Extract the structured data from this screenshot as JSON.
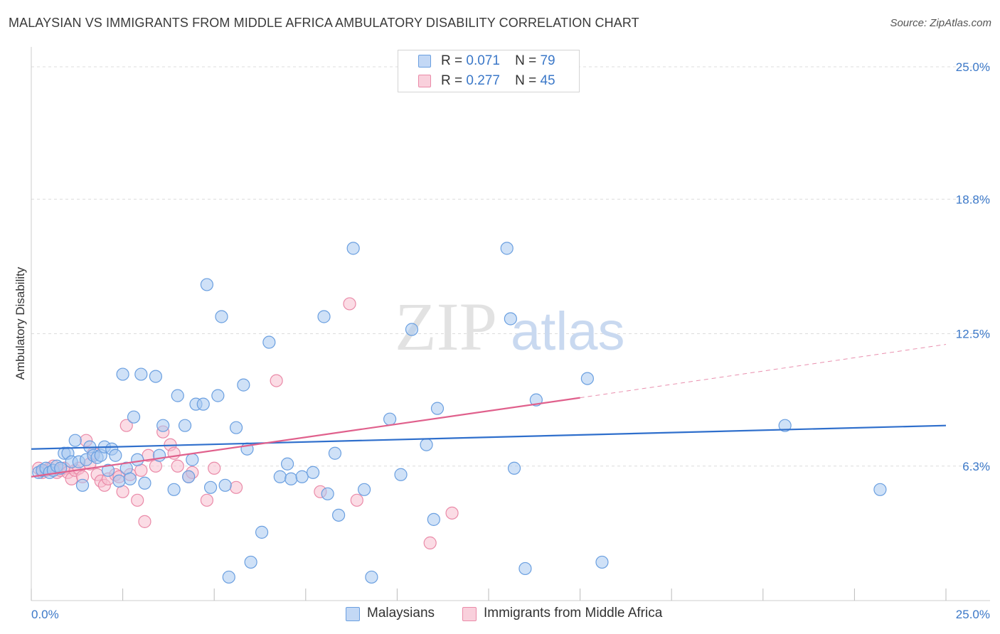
{
  "title": "MALAYSIAN VS IMMIGRANTS FROM MIDDLE AFRICA AMBULATORY DISABILITY CORRELATION CHART",
  "source": "Source: ZipAtlas.com",
  "watermark": {
    "zip": "ZIP",
    "atlas": "atlas"
  },
  "colors": {
    "blue_fill": "#a8c8f0",
    "blue_stroke": "#6a9fe0",
    "blue_line": "#2f6fcc",
    "pink_fill": "#f7c0d0",
    "pink_stroke": "#ea8aa8",
    "pink_line": "#e0608c",
    "axis_text": "#3b78c8",
    "grid": "#dcdcdc"
  },
  "legend": {
    "r_label": "R =",
    "n_label": "N =",
    "items": [
      {
        "r": "0.071",
        "n": "79"
      },
      {
        "r": "0.277",
        "n": "45"
      }
    ]
  },
  "chart_data": {
    "type": "scatter",
    "title": "MALAYSIAN VS IMMIGRANTS FROM MIDDLE AFRICA AMBULATORY DISABILITY CORRELATION CHART",
    "xlabel": "",
    "ylabel": "Ambulatory Disability",
    "xlim": [
      0,
      25
    ],
    "ylim": [
      0,
      25.6
    ],
    "x_tick_labels": [
      "0.0%",
      "25.0%"
    ],
    "y_ticks": [
      6.3,
      12.5,
      18.8,
      25.0
    ],
    "y_tick_labels": [
      "6.3%",
      "12.5%",
      "18.8%",
      "25.0%"
    ],
    "grid": "horizontal dashed",
    "legend_position": "top-center",
    "series": [
      {
        "name": "Malaysians",
        "color": "#a8c8f0",
        "trend": {
          "x0": 0,
          "y0": 7.1,
          "x1": 25,
          "y1": 8.2
        },
        "points": [
          [
            0.2,
            6.0
          ],
          [
            0.3,
            6.1
          ],
          [
            0.4,
            6.2
          ],
          [
            0.5,
            6.0
          ],
          [
            0.6,
            6.1
          ],
          [
            0.7,
            6.3
          ],
          [
            0.8,
            6.2
          ],
          [
            0.9,
            6.9
          ],
          [
            1.0,
            6.9
          ],
          [
            1.1,
            6.5
          ],
          [
            1.2,
            7.5
          ],
          [
            1.3,
            6.5
          ],
          [
            1.4,
            5.4
          ],
          [
            1.5,
            6.6
          ],
          [
            1.6,
            7.2
          ],
          [
            1.7,
            6.8
          ],
          [
            1.8,
            6.7
          ],
          [
            1.9,
            6.8
          ],
          [
            2.0,
            7.2
          ],
          [
            2.1,
            6.1
          ],
          [
            2.2,
            7.1
          ],
          [
            2.3,
            6.8
          ],
          [
            2.4,
            5.6
          ],
          [
            2.5,
            10.6
          ],
          [
            2.6,
            6.2
          ],
          [
            2.7,
            5.7
          ],
          [
            2.8,
            8.6
          ],
          [
            2.9,
            6.6
          ],
          [
            3.0,
            10.6
          ],
          [
            3.1,
            5.5
          ],
          [
            3.4,
            10.5
          ],
          [
            3.5,
            6.8
          ],
          [
            3.6,
            8.2
          ],
          [
            3.9,
            5.2
          ],
          [
            4.0,
            9.6
          ],
          [
            4.2,
            8.2
          ],
          [
            4.3,
            5.8
          ],
          [
            4.4,
            6.6
          ],
          [
            4.5,
            9.2
          ],
          [
            4.7,
            9.2
          ],
          [
            4.8,
            14.8
          ],
          [
            4.9,
            5.3
          ],
          [
            5.1,
            9.6
          ],
          [
            5.2,
            13.3
          ],
          [
            5.3,
            5.4
          ],
          [
            5.4,
            1.1
          ],
          [
            5.6,
            8.1
          ],
          [
            5.8,
            10.1
          ],
          [
            5.9,
            7.1
          ],
          [
            6.0,
            1.8
          ],
          [
            6.3,
            3.2
          ],
          [
            6.5,
            12.1
          ],
          [
            6.8,
            5.8
          ],
          [
            7.0,
            6.4
          ],
          [
            7.1,
            5.7
          ],
          [
            7.4,
            5.8
          ],
          [
            7.7,
            6.0
          ],
          [
            8.0,
            13.3
          ],
          [
            8.1,
            5.0
          ],
          [
            8.3,
            6.9
          ],
          [
            8.4,
            4.0
          ],
          [
            8.8,
            16.5
          ],
          [
            9.1,
            5.2
          ],
          [
            9.3,
            1.1
          ],
          [
            9.8,
            8.5
          ],
          [
            10.1,
            5.9
          ],
          [
            10.4,
            12.7
          ],
          [
            10.8,
            7.3
          ],
          [
            11.0,
            3.8
          ],
          [
            11.1,
            9.0
          ],
          [
            13.0,
            16.5
          ],
          [
            13.1,
            13.2
          ],
          [
            13.2,
            6.2
          ],
          [
            13.5,
            1.5
          ],
          [
            13.8,
            9.4
          ],
          [
            15.2,
            10.4
          ],
          [
            15.6,
            1.8
          ],
          [
            20.6,
            8.2
          ],
          [
            23.2,
            5.2
          ]
        ]
      },
      {
        "name": "Immigrants from Middle Africa",
        "color": "#f7c0d0",
        "trend": {
          "x0": 0,
          "y0": 5.8,
          "x1": 15,
          "y1": 9.5,
          "dash_to_x": 25,
          "dash_to_y": 12.0
        },
        "points": [
          [
            0.2,
            6.2
          ],
          [
            0.3,
            6.0
          ],
          [
            0.4,
            6.1
          ],
          [
            0.5,
            6.2
          ],
          [
            0.6,
            6.3
          ],
          [
            0.7,
            6.0
          ],
          [
            0.8,
            6.1
          ],
          [
            0.9,
            6.2
          ],
          [
            1.0,
            6.0
          ],
          [
            1.1,
            5.7
          ],
          [
            1.2,
            6.1
          ],
          [
            1.3,
            6.2
          ],
          [
            1.4,
            5.8
          ],
          [
            1.5,
            7.5
          ],
          [
            1.6,
            6.4
          ],
          [
            1.7,
            6.9
          ],
          [
            1.8,
            5.9
          ],
          [
            1.9,
            5.6
          ],
          [
            2.0,
            5.4
          ],
          [
            2.1,
            5.7
          ],
          [
            2.3,
            5.9
          ],
          [
            2.4,
            5.8
          ],
          [
            2.5,
            5.1
          ],
          [
            2.6,
            8.2
          ],
          [
            2.7,
            5.9
          ],
          [
            2.9,
            4.7
          ],
          [
            3.0,
            6.1
          ],
          [
            3.1,
            3.7
          ],
          [
            3.2,
            6.8
          ],
          [
            3.4,
            6.3
          ],
          [
            3.6,
            7.9
          ],
          [
            3.8,
            7.3
          ],
          [
            3.9,
            6.9
          ],
          [
            4.0,
            6.3
          ],
          [
            4.3,
            5.8
          ],
          [
            4.4,
            6.0
          ],
          [
            4.8,
            4.7
          ],
          [
            5.0,
            6.2
          ],
          [
            5.6,
            5.3
          ],
          [
            6.7,
            10.3
          ],
          [
            7.9,
            5.1
          ],
          [
            8.7,
            13.9
          ],
          [
            8.9,
            4.7
          ],
          [
            10.9,
            2.7
          ],
          [
            11.5,
            4.1
          ]
        ]
      }
    ]
  },
  "bottom_legend": [
    {
      "label": "Malaysians"
    },
    {
      "label": "Immigrants from Middle Africa"
    }
  ]
}
